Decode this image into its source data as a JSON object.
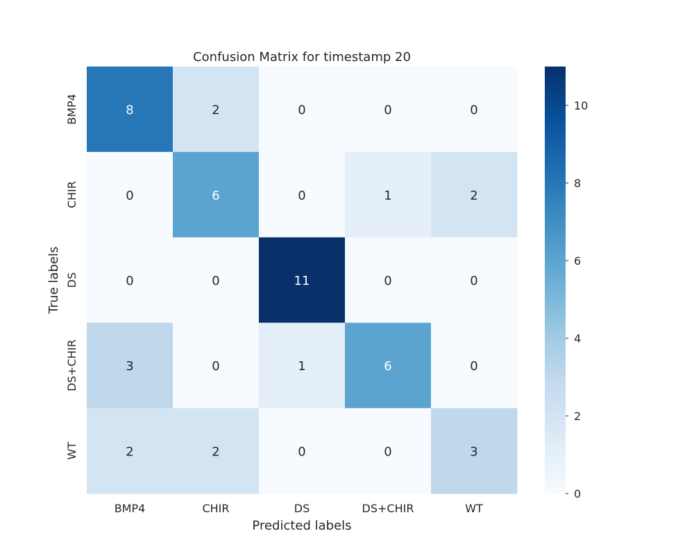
{
  "chart_data": {
    "type": "heatmap",
    "title": "Confusion Matrix for timestamp 20",
    "xlabel": "Predicted labels",
    "ylabel": "True labels",
    "x_categories": [
      "BMP4",
      "CHIR",
      "DS",
      "DS+CHIR",
      "WT"
    ],
    "y_categories": [
      "BMP4",
      "CHIR",
      "DS",
      "DS+CHIR",
      "WT"
    ],
    "values": [
      [
        8,
        2,
        0,
        0,
        0
      ],
      [
        0,
        6,
        0,
        1,
        2
      ],
      [
        0,
        0,
        11,
        0,
        0
      ],
      [
        3,
        0,
        1,
        6,
        0
      ],
      [
        2,
        2,
        0,
        0,
        3
      ]
    ],
    "colorbar": {
      "min": 0,
      "max": 11,
      "ticks": [
        0,
        2,
        4,
        6,
        8,
        10
      ],
      "colormap": "Blues",
      "low_color": "#f7fbff",
      "high_color": "#08306b"
    },
    "grid": false,
    "legend": "colorbar-right"
  }
}
